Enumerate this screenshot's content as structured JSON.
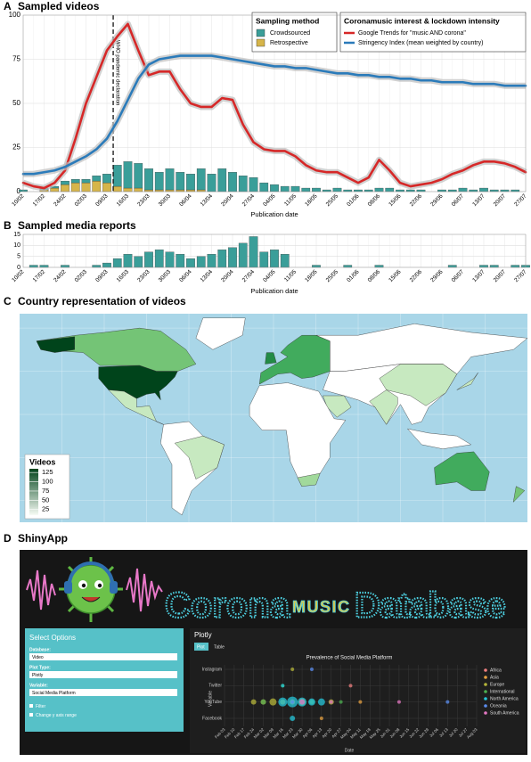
{
  "panels": [
    {
      "label": "A",
      "title": "Sampled videos"
    },
    {
      "label": "B",
      "title": "Sampled media reports"
    },
    {
      "label": "C",
      "title": "Country representation of videos"
    },
    {
      "label": "D",
      "title": "ShinyApp"
    }
  ],
  "chart_data": [
    {
      "type": "combo",
      "x_label": "Publication date",
      "annotation": "WHO pandemic declaration",
      "categories": [
        "10/02",
        null,
        "17/02",
        null,
        "24/02",
        null,
        "02/03",
        null,
        "09/03",
        null,
        "16/03",
        null,
        "23/03",
        null,
        "30/03",
        null,
        "06/04",
        null,
        "13/04",
        null,
        "20/04",
        null,
        "27/04",
        null,
        "04/05",
        null,
        "11/05",
        null,
        "18/05",
        null,
        "25/05",
        null,
        "01/06",
        null,
        "08/06",
        null,
        "15/06",
        null,
        "22/06",
        null,
        "29/06",
        null,
        "06/07",
        null,
        "13/07",
        null,
        "20/07",
        null,
        "27/07"
      ],
      "ylim": [
        0,
        100
      ],
      "yticks": [
        0,
        25,
        50,
        75,
        100
      ],
      "grid": true,
      "legend_titles": [
        "Sampling method",
        "Coronamusic interest & lockdown intensity"
      ],
      "series": [
        {
          "name": "Crowdsourced",
          "type": "bar",
          "color": "#3a9e99",
          "values": [
            1,
            0,
            1,
            1,
            2,
            2,
            2,
            3,
            5,
            12,
            15,
            14,
            12,
            10,
            12,
            10,
            9,
            12,
            10,
            13,
            11,
            9,
            8,
            5,
            4,
            3,
            3,
            2,
            2,
            1,
            2,
            1,
            1,
            1,
            2,
            2,
            1,
            1,
            1,
            0,
            1,
            1,
            2,
            1,
            2,
            1,
            1,
            1,
            0
          ]
        },
        {
          "name": "Retrospective",
          "type": "bar",
          "color": "#d6b54a",
          "values": [
            0,
            0,
            1,
            2,
            4,
            5,
            5,
            6,
            5,
            3,
            2,
            2,
            1,
            1,
            1,
            1,
            1,
            1,
            0,
            0,
            0,
            0,
            0,
            0,
            0,
            0,
            0,
            0,
            0,
            0,
            0,
            0,
            0,
            0,
            0,
            0,
            0,
            0,
            0,
            0,
            0,
            0,
            0,
            0,
            0,
            0,
            0,
            0,
            0
          ]
        },
        {
          "name": "Google Trends for \"music AND corona\"",
          "type": "line",
          "color": "#d62828",
          "values": [
            5,
            3,
            2,
            5,
            12,
            30,
            50,
            65,
            80,
            88,
            95,
            80,
            66,
            68,
            68,
            58,
            50,
            48,
            48,
            53,
            52,
            38,
            28,
            24,
            23,
            23,
            20,
            15,
            12,
            11,
            11,
            8,
            5,
            8,
            18,
            12,
            5,
            3,
            4,
            5,
            7,
            10,
            12,
            15,
            17,
            17,
            16,
            14,
            11
          ]
        },
        {
          "name": "Stringency Index (mean weighted by country)",
          "type": "line",
          "color": "#2b7bba",
          "values": [
            10,
            10,
            11,
            12,
            14,
            17,
            20,
            24,
            30,
            40,
            52,
            64,
            72,
            75,
            76,
            77,
            77,
            77,
            77,
            76,
            75,
            74,
            73,
            72,
            71,
            71,
            70,
            70,
            69,
            68,
            67,
            67,
            66,
            66,
            65,
            65,
            64,
            64,
            63,
            63,
            62,
            62,
            62,
            61,
            61,
            61,
            60,
            60,
            60
          ]
        }
      ]
    },
    {
      "type": "bar",
      "x_label": "Publication date",
      "color": "#3a9e99",
      "categories": [
        "10/02",
        null,
        "17/02",
        null,
        "24/02",
        null,
        "02/03",
        null,
        "09/03",
        null,
        "16/03",
        null,
        "23/03",
        null,
        "30/03",
        null,
        "06/04",
        null,
        "13/04",
        null,
        "20/04",
        null,
        "27/04",
        null,
        "04/05",
        null,
        "11/05",
        null,
        "18/05",
        null,
        "25/05",
        null,
        "01/06",
        null,
        "08/06",
        null,
        "15/06",
        null,
        "22/06",
        null,
        "29/06",
        null,
        "06/07",
        null,
        "13/07",
        null,
        "20/07",
        null,
        "27/07"
      ],
      "ylim": [
        0,
        15
      ],
      "yticks": [
        0,
        5,
        10,
        15
      ],
      "grid": true,
      "values": [
        0,
        1,
        1,
        0,
        1,
        0,
        0,
        1,
        2,
        4,
        6,
        5,
        7,
        8,
        7,
        6,
        4,
        5,
        6,
        8,
        9,
        11,
        14,
        7,
        8,
        6,
        0,
        0,
        1,
        0,
        0,
        1,
        0,
        0,
        1,
        0,
        0,
        0,
        0,
        0,
        0,
        1,
        0,
        0,
        1,
        1,
        0,
        1,
        1
      ]
    }
  ],
  "map": {
    "legend_title": "Videos",
    "lim": [
      10,
      135
    ],
    "ticks": [
      25,
      50,
      75,
      100,
      125
    ],
    "colors": [
      "#f7fcf5",
      "#00441b"
    ]
  },
  "app": {
    "banner": {
      "left": "Corona",
      "middle": "MUSIC",
      "right": "Database"
    },
    "sidebar": {
      "title": "Select Options",
      "fields": [
        {
          "label": "Database:",
          "value": "Video"
        },
        {
          "label": "Plot Type:",
          "value": "Plotly"
        },
        {
          "label": "Variable:",
          "value": "Social Media Platform"
        }
      ],
      "checkboxes": [
        "Filter",
        "Change y axis range"
      ]
    },
    "main": {
      "title": "Plotly",
      "tabs": [
        "Plot",
        "Table"
      ]
    },
    "plot": {
      "title": "Prevalence of Social Media Platform",
      "x_label": "Date",
      "y_label": "Variable",
      "categories": [
        "Facebook",
        "YouTube",
        "Twitter",
        "Instagram"
      ],
      "xticks": [
        "Feb 03",
        "Feb 10",
        "Feb 17",
        "Feb 24",
        "Mar 02",
        "Mar 09",
        "Mar 16",
        "Mar 23",
        "Mar 30",
        "Apr 06",
        "Apr 13",
        "Apr 20",
        "Apr 27",
        "May 04",
        "May 11",
        "May 18",
        "May 25",
        "Jun 01",
        "Jun 08",
        "Jun 15",
        "Jun 22",
        "Jun 29",
        "Jul 06",
        "Jul 13",
        "Jul 20",
        "Jul 27",
        "Aug 03"
      ],
      "series": [
        {
          "name": "Africa",
          "color": "#f08080",
          "x": [
            "Apr 06",
            "May 04"
          ],
          "y": [
            "YouTube",
            "Twitter"
          ],
          "size": [
            2,
            2
          ]
        },
        {
          "name": "Asia",
          "color": "#e6a040",
          "x": [
            "Mar 02",
            "Mar 23",
            "Apr 13",
            "May 11"
          ],
          "y": [
            "YouTube",
            "YouTube",
            "Facebook",
            "YouTube"
          ],
          "size": [
            3,
            3,
            2,
            2
          ]
        },
        {
          "name": "Europe",
          "color": "#b5b53a",
          "x": [
            "Mar 09",
            "Mar 16",
            "Mar 30",
            "Apr 20",
            "Mar 23",
            "Feb 24"
          ],
          "y": [
            "YouTube",
            "YouTube",
            "YouTube",
            "YouTube",
            "Instagram",
            "YouTube"
          ],
          "size": [
            4,
            3,
            4,
            3,
            2,
            3
          ]
        },
        {
          "name": "International",
          "color": "#4caf50",
          "x": [
            "Mar 02",
            "Mar 16",
            "Apr 06",
            "Apr 27"
          ],
          "y": [
            "YouTube",
            "Twitter",
            "YouTube",
            "YouTube"
          ],
          "size": [
            3,
            2,
            3,
            2
          ]
        },
        {
          "name": "North America",
          "color": "#26c6da",
          "x": [
            "Mar 16",
            "Mar 23",
            "Mar 30",
            "Apr 06",
            "Mar 23",
            "Apr 13",
            "Mar 16"
          ],
          "y": [
            "YouTube",
            "YouTube",
            "YouTube",
            "YouTube",
            "Facebook",
            "YouTube",
            "Twitter"
          ],
          "size": [
            5,
            6,
            5,
            4,
            3,
            4,
            2
          ]
        },
        {
          "name": "Oceania",
          "color": "#5b8def",
          "x": [
            "Mar 23",
            "Apr 06",
            "Jul 13"
          ],
          "y": [
            "YouTube",
            "Instagram",
            "YouTube"
          ],
          "size": [
            2,
            2,
            2
          ]
        },
        {
          "name": "South America",
          "color": "#e377c2",
          "x": [
            "Mar 30",
            "Apr 20",
            "Jun 08"
          ],
          "y": [
            "YouTube",
            "YouTube",
            "YouTube"
          ],
          "size": [
            3,
            2,
            2
          ]
        }
      ]
    }
  }
}
